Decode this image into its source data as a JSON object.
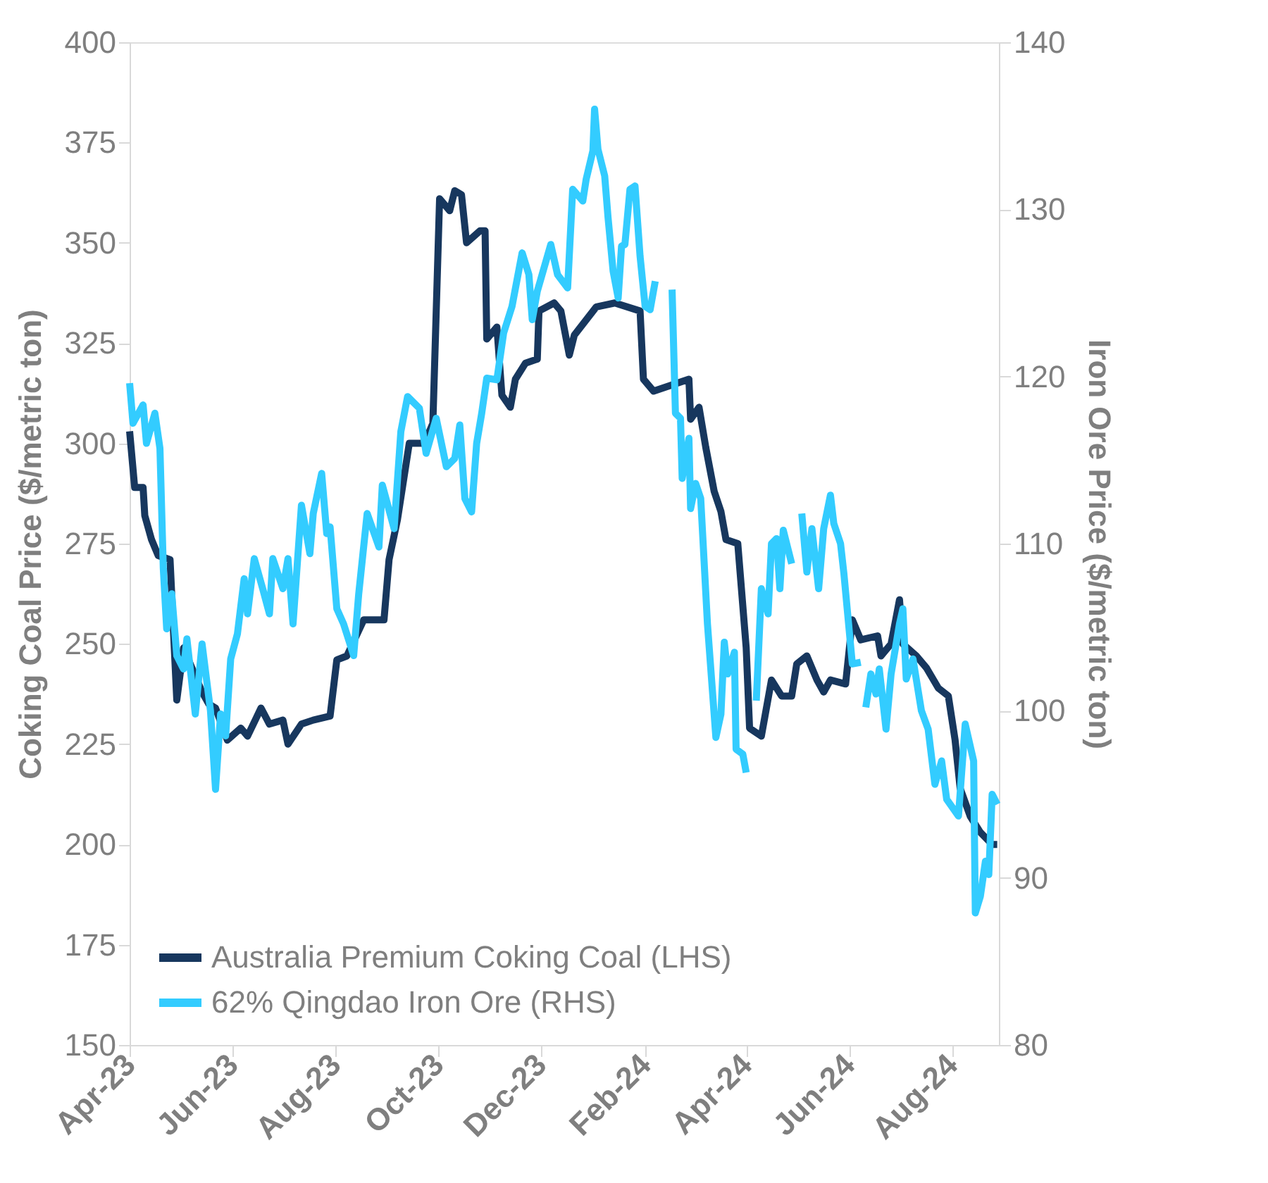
{
  "chart_data": {
    "type": "line",
    "ylabel": "Coking Coal Price ($/metric ton)",
    "y2label": "Iron Ore Price ($/metric ton)",
    "xlim": [
      "2023-04-01",
      "2024-08-29"
    ],
    "xticks": [
      {
        "value": "2023-04-01",
        "label": "Apr-23"
      },
      {
        "value": "2023-06-01",
        "label": "Jun-23"
      },
      {
        "value": "2023-08-01",
        "label": "Aug-23"
      },
      {
        "value": "2023-10-01",
        "label": "Oct-23"
      },
      {
        "value": "2023-12-01",
        "label": "Dec-23"
      },
      {
        "value": "2024-02-01",
        "label": "Feb-24"
      },
      {
        "value": "2024-04-01",
        "label": "Apr-24"
      },
      {
        "value": "2024-06-01",
        "label": "Jun-24"
      },
      {
        "value": "2024-08-01",
        "label": "Aug-24"
      }
    ],
    "ylim": [
      150,
      400
    ],
    "yticks": [
      150,
      175,
      200,
      225,
      250,
      275,
      300,
      325,
      350,
      375,
      400
    ],
    "y2lim": [
      80,
      140
    ],
    "y2ticks": [
      80,
      90,
      100,
      110,
      120,
      130,
      140
    ],
    "grid": false,
    "legend": "bottom left",
    "line_style": "solid",
    "series": [
      {
        "name": "Australia Premium Coking Coal (LHS)",
        "color": "#17375e",
        "x": [
          "2023-04-01",
          "2023-04-04",
          "2023-04-09",
          "2023-04-10",
          "2023-04-14",
          "2023-04-18",
          "2023-04-25",
          "2023-04-29",
          "2023-05-03",
          "2023-05-07",
          "2023-05-14",
          "2023-05-18",
          "2023-05-22",
          "2023-05-29",
          "2023-06-06",
          "2023-06-10",
          "2023-06-18",
          "2023-06-23",
          "2023-07-01",
          "2023-07-04",
          "2023-07-12",
          "2023-07-19",
          "2023-07-29",
          "2023-08-02",
          "2023-08-08",
          "2023-08-18",
          "2023-08-30",
          "2023-09-02",
          "2023-09-07",
          "2023-09-14",
          "2023-09-23",
          "2023-09-28",
          "2023-10-02",
          "2023-10-08",
          "2023-10-11",
          "2023-10-15",
          "2023-10-18",
          "2023-10-26",
          "2023-10-29",
          "2023-10-30",
          "2023-11-05",
          "2023-11-08",
          "2023-11-13",
          "2023-11-16",
          "2023-11-22",
          "2023-11-29",
          "2023-11-30",
          "2023-12-09",
          "2023-12-13",
          "2023-12-18",
          "2023-12-21",
          "2024-01-03",
          "2024-01-14",
          "2024-01-29",
          "2024-01-31",
          "2024-02-06",
          "2024-02-27",
          "2024-02-28",
          "2024-03-04",
          "2024-03-08",
          "2024-03-13",
          "2024-03-17",
          "2024-03-20",
          "2024-03-27",
          "2024-04-01",
          "2024-04-03",
          "2024-04-10",
          "2024-04-16",
          "2024-04-22",
          "2024-04-28",
          "2024-05-01",
          "2024-05-07",
          "2024-05-13",
          "2024-05-17",
          "2024-05-21",
          "2024-05-30",
          "2024-06-03",
          "2024-06-08",
          "2024-06-18",
          "2024-06-20",
          "2024-06-26",
          "2024-07-01",
          "2024-07-03",
          "2024-07-11",
          "2024-07-17",
          "2024-07-24",
          "2024-07-30",
          "2024-08-03",
          "2024-08-06",
          "2024-08-12",
          "2024-08-18",
          "2024-08-25",
          "2024-08-28"
        ],
        "values": [
          303,
          289,
          289,
          282,
          276,
          272,
          271,
          236,
          249,
          245,
          238,
          235,
          234,
          226,
          229,
          227,
          234,
          230,
          231,
          225,
          230,
          231,
          232,
          246,
          247,
          256,
          256,
          271,
          281,
          300,
          300,
          305,
          361,
          358,
          363,
          362,
          350,
          353,
          353,
          326,
          329,
          312,
          309,
          316,
          320,
          321,
          333,
          335,
          333,
          322,
          327,
          334,
          335,
          333,
          316,
          313,
          316,
          306,
          309,
          299,
          288,
          283,
          276,
          275,
          249,
          229,
          227,
          241,
          237,
          237,
          245,
          247,
          241,
          238,
          241,
          240,
          256,
          251,
          252,
          247,
          250,
          261,
          250,
          247,
          244,
          239,
          237,
          226,
          214,
          207,
          203,
          200,
          200
        ]
      },
      {
        "name": "62% Qingdao Iron Ore (RHS)",
        "color": "#33ccff",
        "axis": "y2",
        "x": [
          "2023-04-01",
          "2023-04-03",
          "2023-04-09",
          "2023-04-11",
          "2023-04-16",
          "2023-04-19",
          "2023-04-21",
          "2023-04-23",
          "2023-04-26",
          "2023-04-29",
          "2023-05-03",
          "2023-05-05",
          "2023-05-10",
          "2023-05-14",
          "2023-05-19",
          "2023-05-22",
          "2023-05-25",
          "2023-05-28",
          "2023-05-31",
          "2023-06-04",
          "2023-06-08",
          "2023-06-10",
          "2023-06-14",
          "2023-06-19",
          "2023-06-23",
          "2023-06-25",
          "2023-07-01",
          "2023-07-04",
          "2023-07-07",
          "2023-07-12",
          "2023-07-17",
          "2023-07-19",
          "2023-07-24",
          "2023-07-27",
          "2023-07-29",
          "2023-08-02",
          "2023-08-06",
          "2023-08-12",
          "2023-08-15",
          "2023-08-20",
          "2023-08-27",
          "2023-08-29",
          "2023-09-05",
          "2023-09-09",
          "2023-09-13",
          "2023-09-20",
          "2023-09-24",
          "2023-09-30",
          "2023-10-06",
          "2023-10-11",
          "2023-10-14",
          "2023-10-17",
          "2023-10-21",
          "2023-10-24",
          "2023-10-27",
          "2023-10-30",
          "2023-11-05",
          "2023-11-09",
          "2023-11-14",
          "2023-11-20",
          "2023-11-24",
          "2023-11-26",
          "2023-11-29",
          "2023-12-07",
          "2023-12-11",
          "2023-12-17",
          "2023-12-20",
          "2023-12-26",
          "2023-12-28",
          "2024-01-01",
          "2024-01-02",
          "2024-01-04",
          "2024-01-08",
          "2024-01-10",
          "2024-01-13",
          "2024-01-16",
          "2024-01-18",
          "2024-01-20",
          "2024-01-23",
          "2024-01-26",
          "2024-01-29",
          "2024-02-01",
          "2024-02-04",
          "2024-02-07",
          "2024-02-12",
          "2024-02-17",
          "2024-02-19",
          "2024-02-22",
          "2024-02-23",
          "2024-02-27",
          "2024-02-28",
          "2024-03-02",
          "2024-03-05",
          "2024-03-09",
          "2024-03-14",
          "2024-03-17",
          "2024-03-19",
          "2024-03-21",
          "2024-03-25",
          "2024-03-26",
          "2024-03-30",
          "2024-04-01",
          "2024-04-04",
          "2024-04-07",
          "2024-04-10",
          "2024-04-14",
          "2024-04-16",
          "2024-04-19",
          "2024-04-21",
          "2024-04-23",
          "2024-04-28",
          "2024-05-01",
          "2024-05-04",
          "2024-05-07",
          "2024-05-10",
          "2024-05-14",
          "2024-05-17",
          "2024-05-21",
          "2024-05-23",
          "2024-05-27",
          "2024-05-29",
          "2024-06-03",
          "2024-06-08",
          "2024-06-09",
          "2024-06-11",
          "2024-06-14",
          "2024-06-17",
          "2024-06-19",
          "2024-06-23",
          "2024-06-26",
          "2024-07-01",
          "2024-07-03",
          "2024-07-05",
          "2024-07-09",
          "2024-07-14",
          "2024-07-18",
          "2024-07-22",
          "2024-07-26",
          "2024-07-29",
          "2024-08-05",
          "2024-08-09",
          "2024-08-14",
          "2024-08-15",
          "2024-08-18",
          "2024-08-21",
          "2024-08-23",
          "2024-08-25",
          "2024-08-28"
        ],
        "values": [
          119.6,
          117.2,
          118.3,
          116,
          117.8,
          115.7,
          108.5,
          104.9,
          107,
          103.3,
          102.5,
          104.3,
          99.8,
          104,
          100,
          95.3,
          99.8,
          98.5,
          103.1,
          104.6,
          107.9,
          105.8,
          109.1,
          107.3,
          105.8,
          109.1,
          107.3,
          109.1,
          105.2,
          112.3,
          109.4,
          111.8,
          114.2,
          110.6,
          111,
          106.1,
          105.2,
          103.3,
          107,
          111.8,
          109.8,
          113.5,
          110.9,
          116.7,
          118.8,
          118.1,
          115.4,
          117.5,
          114.6,
          115.1,
          117.1,
          112.7,
          111.9,
          116,
          117.8,
          119.9,
          119.8,
          122.6,
          124.2,
          127.4,
          126.1,
          123.4,
          125.1,
          127.9,
          126.1,
          125.3,
          131.2,
          130.5,
          131.8,
          133.5,
          136,
          133.6,
          132,
          129.5,
          126.3,
          124.7,
          127.8,
          127.9,
          131.2,
          131.4,
          127.2,
          124.2,
          124,
          125.7,
          null,
          125.2,
          117.8,
          117.5,
          113.9,
          116.3,
          112.1,
          113.6,
          112.7,
          105.2,
          98.4,
          99.8,
          104.1,
          102.2,
          103.5,
          97.7,
          97.4,
          96.3,
          null,
          100.6,
          107.3,
          105.8,
          110,
          110.3,
          107.3,
          110.8,
          108.8,
          null,
          111.8,
          108.3,
          110.9,
          107.3,
          110.9,
          112.9,
          111.2,
          110,
          108.2,
          102.8,
          102.9,
          null,
          100.2,
          102.2,
          101,
          102.5,
          98.9,
          102.2,
          105.2,
          106.1,
          101.9,
          103.1,
          100,
          98.9,
          95.6,
          97,
          94.7,
          93.7,
          99.2,
          97,
          87.9,
          88.9,
          91,
          90.2,
          95,
          94.4
        ]
      }
    ]
  }
}
